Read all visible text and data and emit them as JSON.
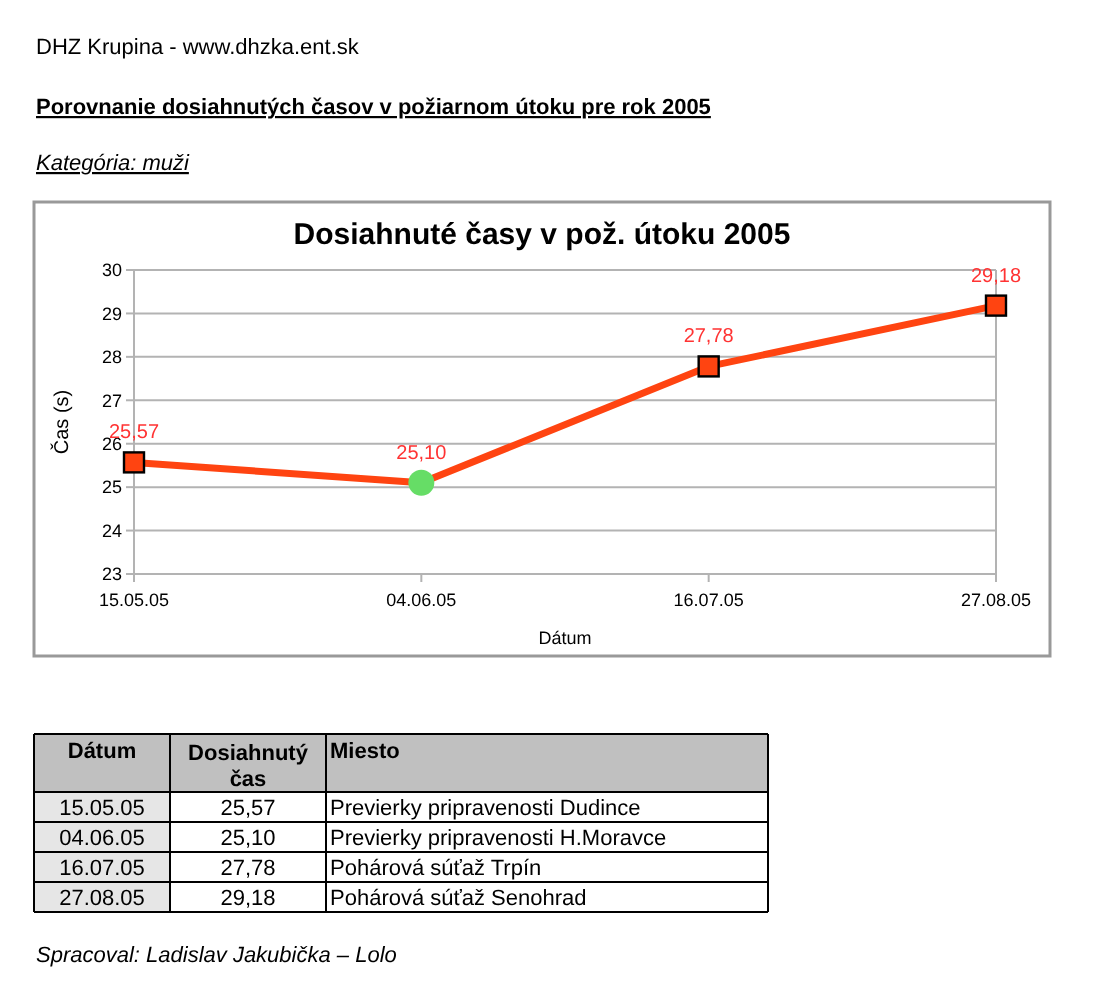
{
  "chart_data": {
    "type": "line",
    "title": "Dosiahnuté časy v pož. útoku 2005",
    "subtitle": "Porovnanie dosiahnutých časov v požiarnom útoku pre rok 2005",
    "xlabel": "Dátum",
    "ylabel": "Čas (s)",
    "categories": [
      "15.05.05",
      "04.06.05",
      "16.07.05",
      "27.08.05"
    ],
    "series": [
      {
        "color": "#ff4411",
        "marker": "none",
        "values": [
          25.57,
          25.1,
          27.78,
          29.18
        ],
        "value_labels": [
          "25,57",
          "25,10",
          "27,78",
          "29,18"
        ]
      },
      {
        "type": "scatter",
        "color": "#ff4411",
        "marker": "square",
        "values": [
          25.57,
          null,
          27.78,
          29.18
        ]
      },
      {
        "type": "scatter",
        "color": "#66dd66",
        "marker": "circle",
        "values": [
          null,
          25.1,
          null,
          null
        ]
      }
    ],
    "ylim": [
      23,
      30
    ],
    "yticks": [
      23,
      24,
      25,
      26,
      27,
      28,
      29,
      30
    ],
    "grid": "y",
    "annotations": [
      "DHZ Krupina - www.dhzka.ent.sk",
      "Kategória: muži",
      "Dosiahnutý čas",
      "Miesto",
      "Previerky pripravenosti Dudince",
      "Previerky pripravenosti H.Moravce",
      "Pohárová súťaž Trpín",
      "Pohárová súťaž Senohrad",
      "Spracoval: Ladislav Jakubička – Lolo"
    ]
  }
}
